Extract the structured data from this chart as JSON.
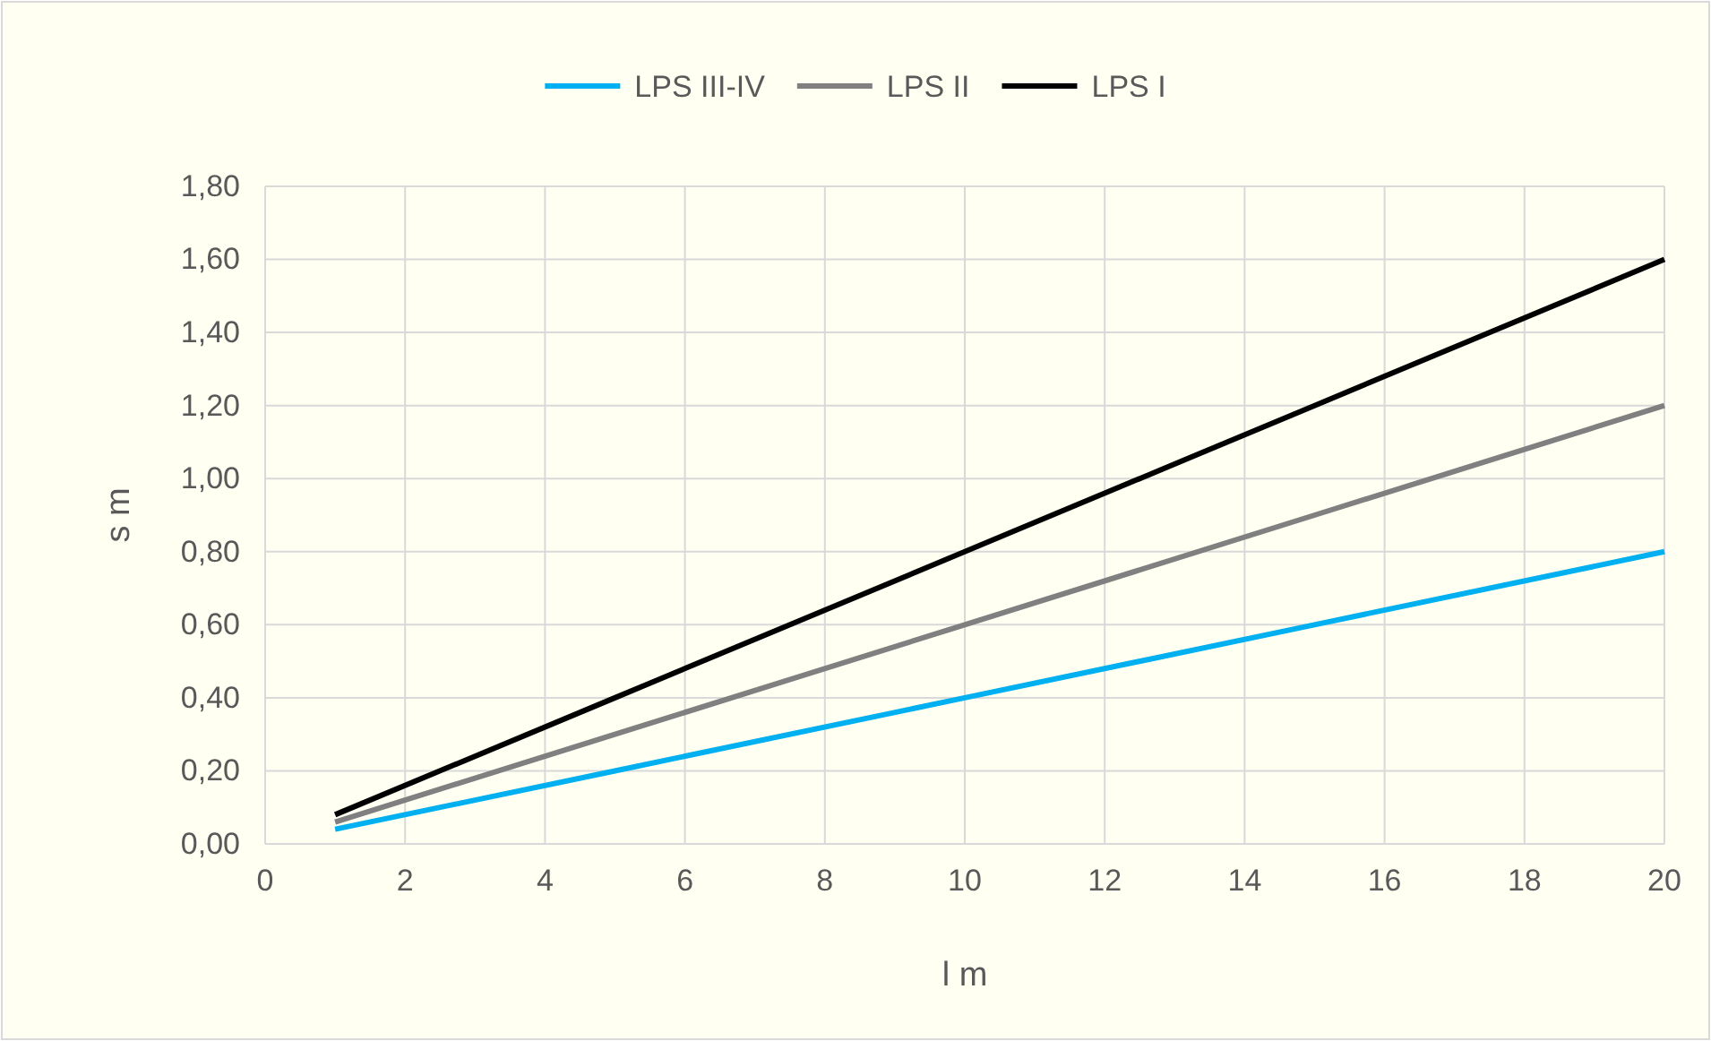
{
  "chart_data": {
    "type": "line",
    "xlabel": "l m",
    "ylabel": "s m",
    "xlim": [
      0,
      20
    ],
    "xticks": [
      0,
      2,
      4,
      6,
      8,
      10,
      12,
      14,
      16,
      18,
      20
    ],
    "ylim": [
      0,
      1.8
    ],
    "yticks": [
      {
        "value": 0,
        "label": "0,00"
      },
      {
        "value": 0.2,
        "label": "0,20"
      },
      {
        "value": 0.4,
        "label": "0,40"
      },
      {
        "value": 0.6,
        "label": "0,60"
      },
      {
        "value": 0.8,
        "label": "0,80"
      },
      {
        "value": 1,
        "label": "1,00"
      },
      {
        "value": 1.2,
        "label": "1,20"
      },
      {
        "value": 1.4,
        "label": "1,40"
      },
      {
        "value": 1.6,
        "label": "1,60"
      },
      {
        "value": 1.8,
        "label": "1,80"
      }
    ],
    "grid": true,
    "legend": "top",
    "marker": "none",
    "line_style": "solid",
    "x": [
      1,
      5,
      10,
      15,
      20
    ],
    "series": [
      {
        "name": "LPS III-IV",
        "color": "#00b0f0",
        "values": [
          0.04,
          0.2,
          0.4,
          0.6,
          0.8
        ]
      },
      {
        "name": "LPS II",
        "color": "#808080",
        "values": [
          0.06,
          0.3,
          0.6,
          0.9,
          1.2
        ]
      },
      {
        "name": "LPS I",
        "color": "#000000",
        "values": [
          0.08,
          0.4,
          0.8,
          1.2,
          1.6
        ]
      }
    ]
  }
}
